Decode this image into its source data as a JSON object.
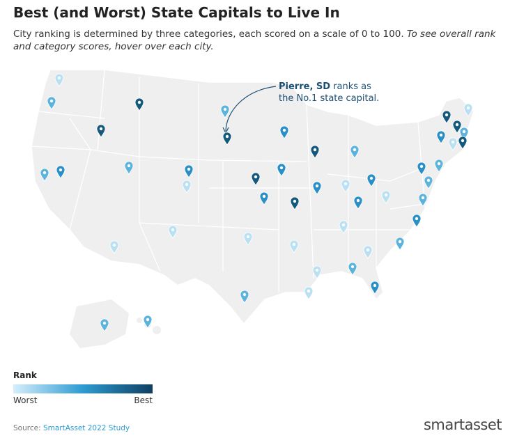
{
  "header": {
    "title": "Best (and Worst) State Capitals to Live In",
    "subtitle": "City ranking is determined by three categories, each scored on a scale of 0 to 100.",
    "subtitle_italic": "To see overall rank and category scores, hover over each city."
  },
  "annotation": {
    "city": "Pierre, SD",
    "text": "ranks as the No.1 state capital."
  },
  "legend": {
    "title": "Rank",
    "low": "Worst",
    "high": "Best"
  },
  "footer": {
    "source_label": "Source:",
    "source": "SmartAsset 2022 Study",
    "logo": "smartasset"
  }
}
